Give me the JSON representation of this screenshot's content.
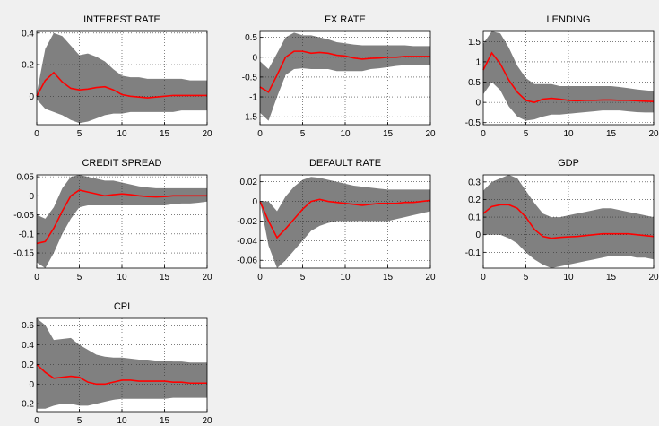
{
  "chart_data": [
    {
      "type": "line",
      "title": "INTEREST RATE",
      "x": [
        0,
        1,
        2,
        3,
        4,
        5,
        6,
        7,
        8,
        9,
        10,
        11,
        12,
        13,
        14,
        15,
        16,
        17,
        18,
        19,
        20
      ],
      "xlim": [
        0,
        20
      ],
      "xticks": [
        0,
        5,
        10,
        15,
        20
      ],
      "xtick_labels": [
        "0",
        "5",
        "10",
        "15",
        "20"
      ],
      "ylim": [
        -0.18,
        0.41
      ],
      "yticks": [
        0,
        0.2,
        0.4
      ],
      "ytick_labels": [
        "0",
        "0.2",
        "0.4"
      ],
      "grid": true,
      "series": [
        {
          "role": "median",
          "color": "#ff0000",
          "values": [
            0.0,
            0.1,
            0.15,
            0.09,
            0.05,
            0.04,
            0.045,
            0.055,
            0.06,
            0.04,
            0.01,
            0.0,
            -0.005,
            -0.01,
            -0.005,
            0.0,
            0.005,
            0.005,
            0.005,
            0.005,
            0.005
          ]
        },
        {
          "role": "band_upper",
          "color": "#808080",
          "values": [
            0.02,
            0.3,
            0.4,
            0.38,
            0.32,
            0.26,
            0.27,
            0.25,
            0.22,
            0.17,
            0.13,
            0.12,
            0.12,
            0.11,
            0.11,
            0.11,
            0.11,
            0.11,
            0.1,
            0.1,
            0.1
          ]
        },
        {
          "role": "band_lower",
          "color": "#808080",
          "values": [
            -0.02,
            -0.08,
            -0.1,
            -0.12,
            -0.15,
            -0.17,
            -0.16,
            -0.14,
            -0.12,
            -0.11,
            -0.11,
            -0.1,
            -0.1,
            -0.1,
            -0.1,
            -0.1,
            -0.1,
            -0.09,
            -0.09,
            -0.09,
            -0.09
          ]
        }
      ]
    },
    {
      "type": "line",
      "title": "FX RATE",
      "x": [
        0,
        1,
        2,
        3,
        4,
        5,
        6,
        7,
        8,
        9,
        10,
        11,
        12,
        13,
        14,
        15,
        16,
        17,
        18,
        19,
        20
      ],
      "xlim": [
        0,
        20
      ],
      "xticks": [
        0,
        5,
        10,
        15,
        20
      ],
      "xtick_labels": [
        "0",
        "5",
        "10",
        "15",
        "20"
      ],
      "ylim": [
        -1.7,
        0.65
      ],
      "yticks": [
        -1.5,
        -1,
        -0.5,
        0,
        0.5
      ],
      "ytick_labels": [
        "-1.5",
        "-1",
        "-0.5",
        "0",
        "0.5"
      ],
      "grid": true,
      "series": [
        {
          "role": "median",
          "color": "#ff0000",
          "values": [
            -0.75,
            -0.88,
            -0.45,
            0.0,
            0.15,
            0.15,
            0.1,
            0.12,
            0.1,
            0.05,
            0.03,
            -0.02,
            -0.05,
            -0.03,
            -0.02,
            0.0,
            0.0,
            0.02,
            0.02,
            0.02,
            0.02
          ]
        },
        {
          "role": "band_upper",
          "color": "#808080",
          "values": [
            -0.1,
            -0.3,
            0.1,
            0.5,
            0.62,
            0.55,
            0.55,
            0.5,
            0.45,
            0.38,
            0.35,
            0.32,
            0.3,
            0.3,
            0.3,
            0.3,
            0.3,
            0.3,
            0.28,
            0.28,
            0.28
          ]
        },
        {
          "role": "band_lower",
          "color": "#808080",
          "values": [
            -1.4,
            -1.6,
            -1.0,
            -0.45,
            -0.3,
            -0.28,
            -0.3,
            -0.3,
            -0.3,
            -0.35,
            -0.35,
            -0.35,
            -0.35,
            -0.3,
            -0.28,
            -0.25,
            -0.22,
            -0.2,
            -0.2,
            -0.2,
            -0.2
          ]
        }
      ]
    },
    {
      "type": "line",
      "title": "LENDING",
      "x": [
        0,
        1,
        2,
        3,
        4,
        5,
        6,
        7,
        8,
        9,
        10,
        11,
        12,
        13,
        14,
        15,
        16,
        17,
        18,
        19,
        20
      ],
      "xlim": [
        0,
        20
      ],
      "xticks": [
        0,
        5,
        10,
        15,
        20
      ],
      "xtick_labels": [
        "0",
        "5",
        "10",
        "15",
        "20"
      ],
      "ylim": [
        -0.55,
        1.75
      ],
      "yticks": [
        -0.5,
        0,
        0.5,
        1,
        1.5
      ],
      "ytick_labels": [
        "-0.5",
        "0",
        "0.5",
        "1",
        "1.5"
      ],
      "grid": true,
      "series": [
        {
          "role": "median",
          "color": "#ff0000",
          "values": [
            0.8,
            1.22,
            0.95,
            0.55,
            0.25,
            0.05,
            0.0,
            0.08,
            0.1,
            0.08,
            0.05,
            0.04,
            0.05,
            0.05,
            0.06,
            0.06,
            0.05,
            0.05,
            0.04,
            0.03,
            0.02
          ]
        },
        {
          "role": "band_upper",
          "color": "#808080",
          "values": [
            1.45,
            1.75,
            1.7,
            1.35,
            0.9,
            0.6,
            0.45,
            0.45,
            0.45,
            0.4,
            0.4,
            0.4,
            0.4,
            0.4,
            0.4,
            0.4,
            0.38,
            0.35,
            0.32,
            0.3,
            0.28
          ]
        },
        {
          "role": "band_lower",
          "color": "#808080",
          "values": [
            0.2,
            0.5,
            0.3,
            -0.1,
            -0.35,
            -0.45,
            -0.42,
            -0.35,
            -0.3,
            -0.3,
            -0.28,
            -0.26,
            -0.24,
            -0.22,
            -0.2,
            -0.2,
            -0.2,
            -0.22,
            -0.24,
            -0.25,
            -0.25
          ]
        }
      ]
    },
    {
      "type": "line",
      "title": "CREDIT SPREAD",
      "x": [
        0,
        1,
        2,
        3,
        4,
        5,
        6,
        7,
        8,
        9,
        10,
        11,
        12,
        13,
        14,
        15,
        16,
        17,
        18,
        19,
        20
      ],
      "xlim": [
        0,
        20
      ],
      "xticks": [
        0,
        5,
        10,
        15,
        20
      ],
      "xtick_labels": [
        "0",
        "5",
        "10",
        "15",
        "20"
      ],
      "ylim": [
        -0.19,
        0.055
      ],
      "yticks": [
        -0.15,
        -0.1,
        -0.05,
        0,
        0.05
      ],
      "ytick_labels": [
        "-0.15",
        "-0.1",
        "-0.05",
        "0",
        "0.05"
      ],
      "grid": true,
      "series": [
        {
          "role": "median",
          "color": "#ff0000",
          "values": [
            -0.125,
            -0.12,
            -0.085,
            -0.04,
            0.0,
            0.015,
            0.01,
            0.005,
            0.0,
            0.003,
            0.005,
            0.003,
            0.0,
            -0.002,
            -0.003,
            -0.002,
            0.0,
            0.0,
            0.0,
            0.0,
            0.0
          ]
        },
        {
          "role": "band_upper",
          "color": "#808080",
          "values": [
            -0.05,
            -0.06,
            -0.03,
            0.02,
            0.05,
            0.055,
            0.05,
            0.045,
            0.04,
            0.04,
            0.035,
            0.03,
            0.025,
            0.022,
            0.02,
            0.02,
            0.02,
            0.02,
            0.02,
            0.02,
            0.02
          ]
        },
        {
          "role": "band_lower",
          "color": "#808080",
          "values": [
            -0.175,
            -0.19,
            -0.15,
            -0.1,
            -0.06,
            -0.03,
            -0.025,
            -0.025,
            -0.025,
            -0.025,
            -0.025,
            -0.025,
            -0.025,
            -0.025,
            -0.025,
            -0.025,
            -0.022,
            -0.02,
            -0.02,
            -0.018,
            -0.015
          ]
        }
      ]
    },
    {
      "type": "line",
      "title": "DEFAULT RATE",
      "x": [
        0,
        1,
        2,
        3,
        4,
        5,
        6,
        7,
        8,
        9,
        10,
        11,
        12,
        13,
        14,
        15,
        16,
        17,
        18,
        19,
        20
      ],
      "xlim": [
        0,
        20
      ],
      "xticks": [
        0,
        5,
        10,
        15,
        20
      ],
      "xtick_labels": [
        "0",
        "5",
        "10",
        "15",
        "20"
      ],
      "ylim": [
        -0.068,
        0.027
      ],
      "yticks": [
        -0.06,
        -0.04,
        -0.02,
        0,
        0.02
      ],
      "ytick_labels": [
        "-0.06",
        "-0.04",
        "-0.02",
        "0",
        "0.02"
      ],
      "grid": true,
      "series": [
        {
          "role": "median",
          "color": "#ff0000",
          "values": [
            0.0,
            -0.02,
            -0.037,
            -0.028,
            -0.018,
            -0.008,
            0.0,
            0.002,
            0.0,
            -0.001,
            -0.002,
            -0.003,
            -0.004,
            -0.003,
            -0.002,
            -0.002,
            -0.002,
            -0.001,
            -0.001,
            0.0,
            0.001
          ]
        },
        {
          "role": "band_upper",
          "color": "#808080",
          "values": [
            0.0,
            0.0,
            -0.01,
            0.005,
            0.015,
            0.022,
            0.025,
            0.024,
            0.022,
            0.02,
            0.018,
            0.016,
            0.015,
            0.014,
            0.013,
            0.012,
            0.012,
            0.012,
            0.012,
            0.012,
            0.012
          ]
        },
        {
          "role": "band_lower",
          "color": "#808080",
          "values": [
            0.0,
            -0.045,
            -0.068,
            -0.06,
            -0.05,
            -0.04,
            -0.03,
            -0.025,
            -0.022,
            -0.02,
            -0.02,
            -0.02,
            -0.02,
            -0.02,
            -0.02,
            -0.02,
            -0.018,
            -0.016,
            -0.014,
            -0.012,
            -0.01
          ]
        }
      ]
    },
    {
      "type": "line",
      "title": "GDP",
      "x": [
        0,
        1,
        2,
        3,
        4,
        5,
        6,
        7,
        8,
        9,
        10,
        11,
        12,
        13,
        14,
        15,
        16,
        17,
        18,
        19,
        20
      ],
      "xlim": [
        0,
        20
      ],
      "xticks": [
        0,
        5,
        10,
        15,
        20
      ],
      "xtick_labels": [
        "0",
        "5",
        "10",
        "15",
        "20"
      ],
      "ylim": [
        -0.19,
        0.34
      ],
      "yticks": [
        -0.1,
        0,
        0.1,
        0.2,
        0.3
      ],
      "ytick_labels": [
        "-0.1",
        "0",
        "0.1",
        "0.2",
        "0.3"
      ],
      "grid": true,
      "series": [
        {
          "role": "median",
          "color": "#ff0000",
          "values": [
            0.12,
            0.16,
            0.17,
            0.17,
            0.15,
            0.1,
            0.03,
            -0.01,
            -0.02,
            -0.015,
            -0.012,
            -0.01,
            -0.005,
            0.0,
            0.005,
            0.005,
            0.005,
            0.005,
            0.0,
            -0.005,
            -0.01
          ]
        },
        {
          "role": "band_upper",
          "color": "#808080",
          "values": [
            0.25,
            0.3,
            0.32,
            0.34,
            0.32,
            0.25,
            0.18,
            0.12,
            0.1,
            0.1,
            0.11,
            0.12,
            0.13,
            0.14,
            0.15,
            0.15,
            0.14,
            0.13,
            0.12,
            0.11,
            0.1
          ]
        },
        {
          "role": "band_lower",
          "color": "#808080",
          "values": [
            0.0,
            0.0,
            0.0,
            -0.02,
            -0.05,
            -0.1,
            -0.14,
            -0.17,
            -0.19,
            -0.18,
            -0.17,
            -0.16,
            -0.15,
            -0.14,
            -0.13,
            -0.12,
            -0.12,
            -0.12,
            -0.13,
            -0.13,
            -0.14
          ]
        }
      ]
    },
    {
      "type": "line",
      "title": "CPI",
      "x": [
        0,
        1,
        2,
        3,
        4,
        5,
        6,
        7,
        8,
        9,
        10,
        11,
        12,
        13,
        14,
        15,
        16,
        17,
        18,
        19,
        20
      ],
      "xlim": [
        0,
        20
      ],
      "xticks": [
        0,
        5,
        10,
        15,
        20
      ],
      "xtick_labels": [
        "0",
        "5",
        "10",
        "15",
        "20"
      ],
      "ylim": [
        -0.28,
        0.67
      ],
      "yticks": [
        -0.2,
        0,
        0.2,
        0.4,
        0.6
      ],
      "ytick_labels": [
        "-0.2",
        "0",
        "0.2",
        "0.4",
        "0.6"
      ],
      "grid": true,
      "series": [
        {
          "role": "median",
          "color": "#ff0000",
          "values": [
            0.2,
            0.12,
            0.06,
            0.07,
            0.08,
            0.07,
            0.02,
            0.0,
            0.0,
            0.02,
            0.04,
            0.04,
            0.03,
            0.03,
            0.03,
            0.03,
            0.02,
            0.02,
            0.01,
            0.01,
            0.01
          ]
        },
        {
          "role": "band_upper",
          "color": "#808080",
          "values": [
            0.67,
            0.6,
            0.45,
            0.46,
            0.47,
            0.4,
            0.35,
            0.3,
            0.28,
            0.27,
            0.27,
            0.26,
            0.25,
            0.25,
            0.24,
            0.24,
            0.23,
            0.23,
            0.22,
            0.22,
            0.22
          ]
        },
        {
          "role": "band_lower",
          "color": "#808080",
          "values": [
            -0.25,
            -0.25,
            -0.22,
            -0.2,
            -0.2,
            -0.22,
            -0.22,
            -0.2,
            -0.18,
            -0.16,
            -0.15,
            -0.15,
            -0.15,
            -0.15,
            -0.15,
            -0.15,
            -0.14,
            -0.14,
            -0.14,
            -0.14,
            -0.14
          ]
        }
      ]
    }
  ]
}
